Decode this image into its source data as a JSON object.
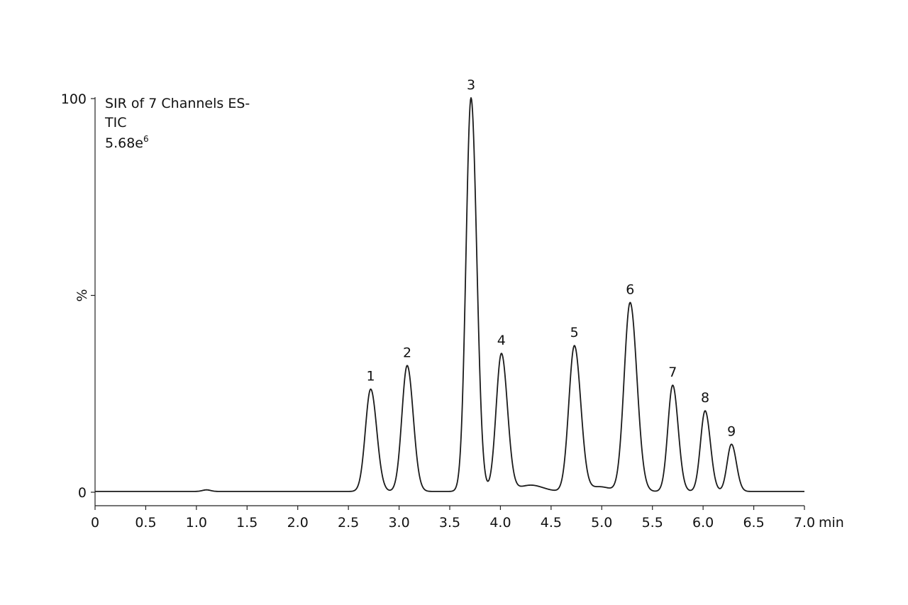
{
  "chart_data": {
    "type": "line",
    "annotation": {
      "line1": "SIR of 7 Channels ES-",
      "line2": "TIC",
      "line3_base": "5.68e",
      "line3_sup": "6"
    },
    "x_unit": "min",
    "ylabel": "%",
    "xlim": [
      0,
      7.0
    ],
    "ylim": [
      0,
      100
    ],
    "x_ticks": [
      0,
      0.5,
      1.0,
      1.5,
      2.0,
      2.5,
      3.0,
      3.5,
      4.0,
      4.5,
      5.0,
      5.5,
      6.0,
      6.5,
      7.0
    ],
    "x_tick_labels": [
      "0",
      "0.5",
      "1.0",
      "1.5",
      "2.0",
      "2.5",
      "3.0",
      "3.5",
      "4.0",
      "4.5",
      "5.0",
      "5.5",
      "6.0",
      "6.5",
      "7.0"
    ],
    "y_ticks": [
      0,
      50,
      100
    ],
    "y_tick_labels": [
      "0",
      "",
      "100"
    ],
    "baseline": 0.2,
    "peaks": [
      {
        "label": "1",
        "rt": 2.72,
        "height": 26,
        "width": 0.055
      },
      {
        "label": "2",
        "rt": 3.08,
        "height": 32,
        "width": 0.055
      },
      {
        "label": "3",
        "rt": 3.71,
        "height": 100,
        "width": 0.052
      },
      {
        "label": "4",
        "rt": 4.01,
        "height": 35,
        "width": 0.055
      },
      {
        "label": "5",
        "rt": 4.73,
        "height": 37,
        "width": 0.058
      },
      {
        "label": "6",
        "rt": 5.28,
        "height": 48,
        "width": 0.062
      },
      {
        "label": "7",
        "rt": 5.7,
        "height": 27,
        "width": 0.05
      },
      {
        "label": "8",
        "rt": 6.02,
        "height": 20.5,
        "width": 0.048
      },
      {
        "label": "9",
        "rt": 6.28,
        "height": 12,
        "width": 0.045
      }
    ],
    "minor_features": [
      {
        "rt": 1.1,
        "height": 0.4,
        "width": 0.04
      },
      {
        "rt": 4.3,
        "height": 1.6,
        "width": 0.12
      },
      {
        "rt": 4.98,
        "height": 1.2,
        "width": 0.1
      }
    ],
    "grid": false,
    "legend": "none"
  }
}
